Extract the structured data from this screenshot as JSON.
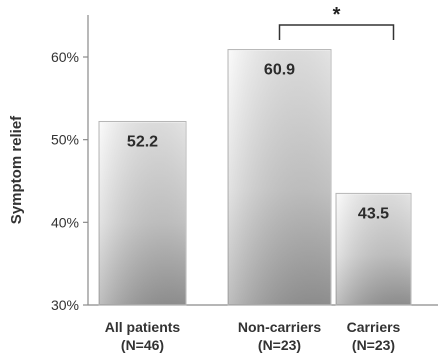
{
  "chart_data": {
    "type": "bar",
    "ylabel": "Symptom relief",
    "xlabel": "",
    "title": "",
    "ylim": [
      30,
      65
    ],
    "yticks": [
      30,
      40,
      50,
      60
    ],
    "ytick_labels": [
      "30%",
      "40%",
      "50%",
      "60%"
    ],
    "categories": [
      "All patients",
      "Non-carriers",
      "Carriers"
    ],
    "category_sublabels": [
      "(N=46)",
      "(N=23)",
      "(N=23)"
    ],
    "values": [
      52.2,
      60.9,
      43.5
    ],
    "value_labels": [
      "52.2",
      "60.9",
      "43.5"
    ],
    "significance": {
      "between": [
        "Non-carriers",
        "Carriers"
      ],
      "label": "*"
    },
    "grid": false,
    "legend": "none"
  }
}
